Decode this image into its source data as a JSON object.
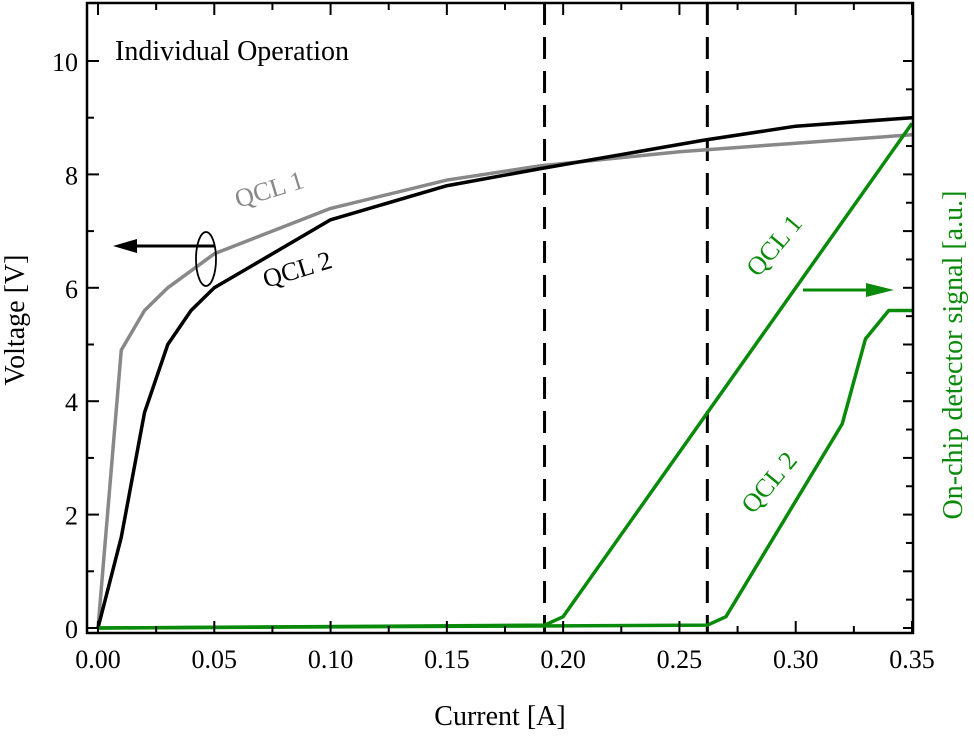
{
  "chart_data": {
    "type": "line",
    "title": "Individual Operation",
    "xlabel": "Current [A]",
    "ylabel": "Voltage [V]",
    "y2label": "On-chip detector signal [a.u.]",
    "xlim": [
      0.0,
      0.35
    ],
    "ylim": [
      0,
      10.5
    ],
    "xticks": [
      "0.00",
      "0.05",
      "0.10",
      "0.15",
      "0.20",
      "0.25",
      "0.30",
      "0.35"
    ],
    "yticks": [
      "0",
      "2",
      "4",
      "6",
      "8",
      "10"
    ],
    "grid": false,
    "colors": {
      "qcl1_voltage": "#888888",
      "qcl2_voltage": "#000000",
      "detector": "#0a8a0a",
      "axis": "#000000"
    },
    "series": [
      {
        "name": "QCL 1 (voltage)",
        "axis": "left",
        "color": "#888888",
        "x": [
          0.0,
          0.01,
          0.02,
          0.03,
          0.05,
          0.1,
          0.15,
          0.19,
          0.25,
          0.3,
          0.35
        ],
        "y": [
          0.0,
          4.9,
          5.6,
          6.0,
          6.6,
          7.4,
          7.9,
          8.15,
          8.4,
          8.55,
          8.7
        ]
      },
      {
        "name": "QCL 2 (voltage)",
        "axis": "left",
        "color": "#000000",
        "x": [
          0.0,
          0.01,
          0.02,
          0.03,
          0.04,
          0.05,
          0.1,
          0.15,
          0.19,
          0.26,
          0.3,
          0.35
        ],
        "y": [
          0.0,
          1.6,
          3.8,
          5.0,
          5.6,
          6.0,
          7.2,
          7.8,
          8.1,
          8.6,
          8.85,
          9.0
        ]
      },
      {
        "name": "QCL 1 (detector)",
        "axis": "right",
        "color": "#0a8a0a",
        "x": [
          0.0,
          0.192,
          0.2,
          0.35
        ],
        "y": [
          0.0,
          0.05,
          0.2,
          8.9
        ]
      },
      {
        "name": "QCL 2 (detector)",
        "axis": "right",
        "color": "#0a8a0a",
        "x": [
          0.0,
          0.262,
          0.27,
          0.32,
          0.33,
          0.34,
          0.35
        ],
        "y": [
          0.0,
          0.05,
          0.2,
          3.6,
          5.1,
          5.6,
          5.6
        ]
      }
    ],
    "vlines": [
      0.192,
      0.262
    ],
    "annotations": [
      "QCL 1",
      "QCL 2",
      "QCL 1",
      "QCL 2"
    ]
  },
  "labels": {
    "title": "Individual Operation",
    "xlabel": "Current [A]",
    "ylabel": "Voltage [V]",
    "y2label": "On-chip detector signal [a.u.]",
    "qcl1_v": "QCL 1",
    "qcl2_v": "QCL 2",
    "qcl1_d": "QCL 1",
    "qcl2_d": "QCL 2"
  }
}
